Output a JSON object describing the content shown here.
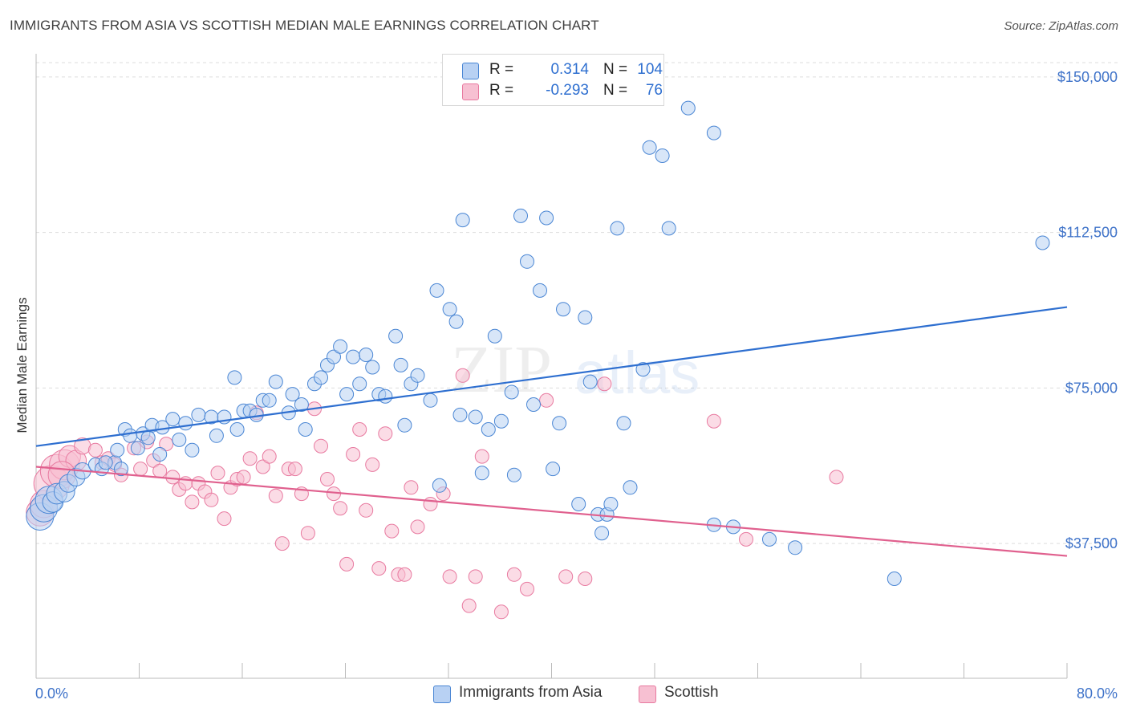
{
  "title": "IMMIGRANTS FROM ASIA VS SCOTTISH MEDIAN MALE EARNINGS CORRELATION CHART",
  "source": "Source: ZipAtlas.com",
  "watermark": {
    "zip": "ZIP",
    "atlas": "atlas"
  },
  "colors": {
    "blue": "#4a86d4",
    "blue_fill": "#b8d1f3",
    "blue_line": "#2e6fd0",
    "pink": "#e87aa0",
    "pink_fill": "#f7c0d2",
    "pink_line": "#e0608e",
    "axis_text": "#3f73c9",
    "grid": "#dddddd"
  },
  "legend_top": {
    "rows": [
      {
        "r_label": "R =",
        "r_value": "0.314",
        "n_label": "N =",
        "n_value": "104",
        "color": "blue"
      },
      {
        "r_label": "R =",
        "r_value": "-0.293",
        "n_label": "N =",
        "n_value": "76",
        "color": "pink"
      }
    ]
  },
  "legend_bottom": {
    "items": [
      {
        "label": "Immigrants from Asia",
        "color": "blue"
      },
      {
        "label": "Scottish",
        "color": "pink"
      }
    ]
  },
  "chart_data": {
    "type": "scatter",
    "title": "IMMIGRANTS FROM ASIA VS SCOTTISH MEDIAN MALE EARNINGS CORRELATION CHART",
    "xlabel": "",
    "ylabel": "Median Male Earnings",
    "xlim": [
      0,
      80
    ],
    "ylim": [
      5000,
      155000
    ],
    "x_tick_labels": [
      "0.0%",
      "80.0%"
    ],
    "y_ticks": [
      37500,
      75000,
      112500,
      150000
    ],
    "y_tick_labels": [
      "$37,500",
      "$75,000",
      "$112,500",
      "$150,000"
    ],
    "grid": "horizontal dashed",
    "legend_placement": "bottom-center",
    "series": [
      {
        "name": "Immigrants from Asia",
        "color": "blue",
        "trend": {
          "x": [
            0,
            80
          ],
          "y": [
            61000,
            94500
          ]
        },
        "points": [
          [
            0.3,
            44000,
            2
          ],
          [
            0.6,
            46000,
            2
          ],
          [
            1.0,
            48000,
            2
          ],
          [
            1.3,
            47500,
            1.5
          ],
          [
            1.6,
            49500,
            1.5
          ],
          [
            2.2,
            50000,
            1.5
          ],
          [
            2.5,
            52000,
            1.3
          ],
          [
            3.1,
            53500,
            1.3
          ],
          [
            3.6,
            55000,
            1.2
          ],
          [
            4.6,
            56500,
            1
          ],
          [
            5.1,
            55500,
            1
          ],
          [
            6.1,
            57000,
            1
          ],
          [
            6.6,
            55500,
            1
          ],
          [
            6.3,
            60000,
            1
          ],
          [
            6.9,
            65000,
            1
          ],
          [
            7.3,
            63500,
            1
          ],
          [
            7.9,
            60500,
            1
          ],
          [
            8.3,
            64000,
            1
          ],
          [
            8.7,
            63000,
            1
          ],
          [
            9.0,
            66000,
            1
          ],
          [
            9.8,
            65500,
            1
          ],
          [
            9.6,
            59000,
            1
          ],
          [
            10.6,
            67500,
            1
          ],
          [
            11.1,
            62500,
            1
          ],
          [
            12.1,
            60000,
            1
          ],
          [
            11.6,
            66500,
            1
          ],
          [
            12.6,
            68500,
            1
          ],
          [
            13.6,
            68000,
            1
          ],
          [
            14.6,
            68000,
            1
          ],
          [
            14.0,
            63500,
            1
          ],
          [
            15.6,
            65000,
            1
          ],
          [
            16.1,
            69500,
            1
          ],
          [
            16.6,
            69500,
            1
          ],
          [
            17.1,
            68500,
            1
          ],
          [
            17.6,
            72000,
            1
          ],
          [
            18.1,
            72000,
            1
          ],
          [
            15.4,
            77500,
            1
          ],
          [
            18.6,
            76500,
            1
          ],
          [
            19.6,
            69000,
            1
          ],
          [
            19.9,
            73500,
            1
          ],
          [
            20.6,
            71000,
            1
          ],
          [
            20.9,
            65000,
            1
          ],
          [
            21.6,
            76000,
            1
          ],
          [
            22.1,
            77500,
            1
          ],
          [
            22.6,
            80500,
            1
          ],
          [
            23.1,
            82500,
            1
          ],
          [
            23.6,
            85000,
            1
          ],
          [
            24.1,
            73500,
            1
          ],
          [
            24.6,
            82500,
            1
          ],
          [
            25.1,
            76000,
            1
          ],
          [
            25.6,
            83000,
            1
          ],
          [
            26.1,
            80000,
            1
          ],
          [
            26.6,
            73500,
            1
          ],
          [
            27.1,
            73000,
            1
          ],
          [
            27.9,
            87500,
            1
          ],
          [
            28.3,
            80500,
            1
          ],
          [
            28.6,
            66000,
            1
          ],
          [
            29.1,
            76000,
            1
          ],
          [
            29.6,
            78000,
            1
          ],
          [
            30.6,
            72000,
            1
          ],
          [
            31.1,
            98500,
            1
          ],
          [
            31.3,
            51500,
            1
          ],
          [
            32.1,
            94000,
            1
          ],
          [
            32.6,
            91000,
            1
          ],
          [
            32.9,
            68500,
            1
          ],
          [
            33.1,
            115500,
            1
          ],
          [
            34.1,
            68000,
            1
          ],
          [
            34.6,
            54500,
            1
          ],
          [
            35.1,
            65000,
            1
          ],
          [
            35.6,
            87500,
            1
          ],
          [
            36.1,
            67000,
            1
          ],
          [
            36.9,
            74000,
            1
          ],
          [
            37.1,
            54000,
            1
          ],
          [
            37.6,
            116500,
            1
          ],
          [
            38.1,
            105500,
            1
          ],
          [
            38.6,
            71000,
            1
          ],
          [
            39.1,
            98500,
            1
          ],
          [
            39.6,
            116000,
            1
          ],
          [
            40.1,
            55500,
            1
          ],
          [
            40.6,
            66500,
            1
          ],
          [
            40.9,
            94000,
            1
          ],
          [
            42.1,
            47000,
            1
          ],
          [
            42.6,
            92000,
            1
          ],
          [
            43.0,
            76500,
            1
          ],
          [
            43.6,
            44500,
            1
          ],
          [
            43.9,
            40000,
            1
          ],
          [
            44.3,
            44500,
            1
          ],
          [
            44.6,
            47000,
            1
          ],
          [
            45.1,
            113500,
            1
          ],
          [
            45.6,
            66500,
            1
          ],
          [
            46.1,
            51000,
            1
          ],
          [
            47.1,
            79500,
            1
          ],
          [
            47.6,
            133000,
            1
          ],
          [
            48.6,
            131000,
            1
          ],
          [
            49.1,
            113500,
            1
          ],
          [
            50.6,
            142500,
            1
          ],
          [
            52.6,
            136500,
            1
          ],
          [
            52.6,
            42000,
            1
          ],
          [
            54.1,
            41500,
            1
          ],
          [
            56.9,
            38500,
            1
          ],
          [
            58.9,
            36500,
            1
          ],
          [
            66.6,
            29000,
            1
          ],
          [
            78.1,
            110000,
            1
          ],
          [
            5.4,
            57000,
            1
          ]
        ]
      },
      {
        "name": "Scottish",
        "color": "pink",
        "trend": {
          "x": [
            0,
            80
          ],
          "y": [
            56000,
            34500
          ]
        },
        "points": [
          [
            0.3,
            45000,
            2
          ],
          [
            0.6,
            47000,
            2
          ],
          [
            1.2,
            52000,
            2.6
          ],
          [
            1.6,
            55000,
            2.4
          ],
          [
            2.2,
            56500,
            2.2
          ],
          [
            2.6,
            58500,
            1.6
          ],
          [
            3.1,
            57500,
            1.5
          ],
          [
            3.6,
            61000,
            1.2
          ],
          [
            4.6,
            60000,
            1
          ],
          [
            5.1,
            57000,
            1
          ],
          [
            5.6,
            58000,
            1
          ],
          [
            6.1,
            56500,
            1
          ],
          [
            6.6,
            54000,
            1
          ],
          [
            7.6,
            60500,
            1
          ],
          [
            8.1,
            55500,
            1
          ],
          [
            8.6,
            62000,
            1
          ],
          [
            9.1,
            57500,
            1
          ],
          [
            9.6,
            55000,
            1
          ],
          [
            10.1,
            61500,
            1
          ],
          [
            10.6,
            53500,
            1
          ],
          [
            11.1,
            50500,
            1
          ],
          [
            11.6,
            52000,
            1
          ],
          [
            12.1,
            47500,
            1
          ],
          [
            12.6,
            52000,
            1
          ],
          [
            13.1,
            50000,
            1
          ],
          [
            13.6,
            48000,
            1
          ],
          [
            14.1,
            54500,
            1
          ],
          [
            14.6,
            43500,
            1
          ],
          [
            15.1,
            51000,
            1
          ],
          [
            15.6,
            53000,
            1
          ],
          [
            16.1,
            53500,
            1
          ],
          [
            16.6,
            58000,
            1
          ],
          [
            17.1,
            69000,
            1
          ],
          [
            17.6,
            56000,
            1
          ],
          [
            18.1,
            58500,
            1
          ],
          [
            18.6,
            49000,
            1
          ],
          [
            19.1,
            37500,
            1
          ],
          [
            19.6,
            55500,
            1
          ],
          [
            20.1,
            55500,
            1
          ],
          [
            20.6,
            49500,
            1
          ],
          [
            21.1,
            40000,
            1
          ],
          [
            21.6,
            70000,
            1
          ],
          [
            22.1,
            61000,
            1
          ],
          [
            22.6,
            53000,
            1
          ],
          [
            23.1,
            49500,
            1
          ],
          [
            23.6,
            46000,
            1
          ],
          [
            24.1,
            32500,
            1
          ],
          [
            24.6,
            59000,
            1
          ],
          [
            25.1,
            65000,
            1
          ],
          [
            25.6,
            45500,
            1
          ],
          [
            26.1,
            56500,
            1
          ],
          [
            26.6,
            31500,
            1
          ],
          [
            27.1,
            64000,
            1
          ],
          [
            27.6,
            40500,
            1
          ],
          [
            28.1,
            30000,
            1
          ],
          [
            28.6,
            30000,
            1
          ],
          [
            29.1,
            51000,
            1
          ],
          [
            29.6,
            41500,
            1
          ],
          [
            30.6,
            47000,
            1
          ],
          [
            31.6,
            49500,
            1
          ],
          [
            32.1,
            29500,
            1
          ],
          [
            33.1,
            78000,
            1
          ],
          [
            33.6,
            22500,
            1
          ],
          [
            34.1,
            29500,
            1
          ],
          [
            34.6,
            58500,
            1
          ],
          [
            36.1,
            21000,
            1
          ],
          [
            37.1,
            30000,
            1
          ],
          [
            38.1,
            26500,
            1
          ],
          [
            39.6,
            72000,
            1
          ],
          [
            41.1,
            29500,
            1
          ],
          [
            42.6,
            29000,
            1
          ],
          [
            44.1,
            76000,
            1
          ],
          [
            52.6,
            67000,
            1
          ],
          [
            55.1,
            38500,
            1
          ],
          [
            62.1,
            53500,
            1
          ],
          [
            2.0,
            54000,
            2
          ]
        ]
      }
    ]
  }
}
